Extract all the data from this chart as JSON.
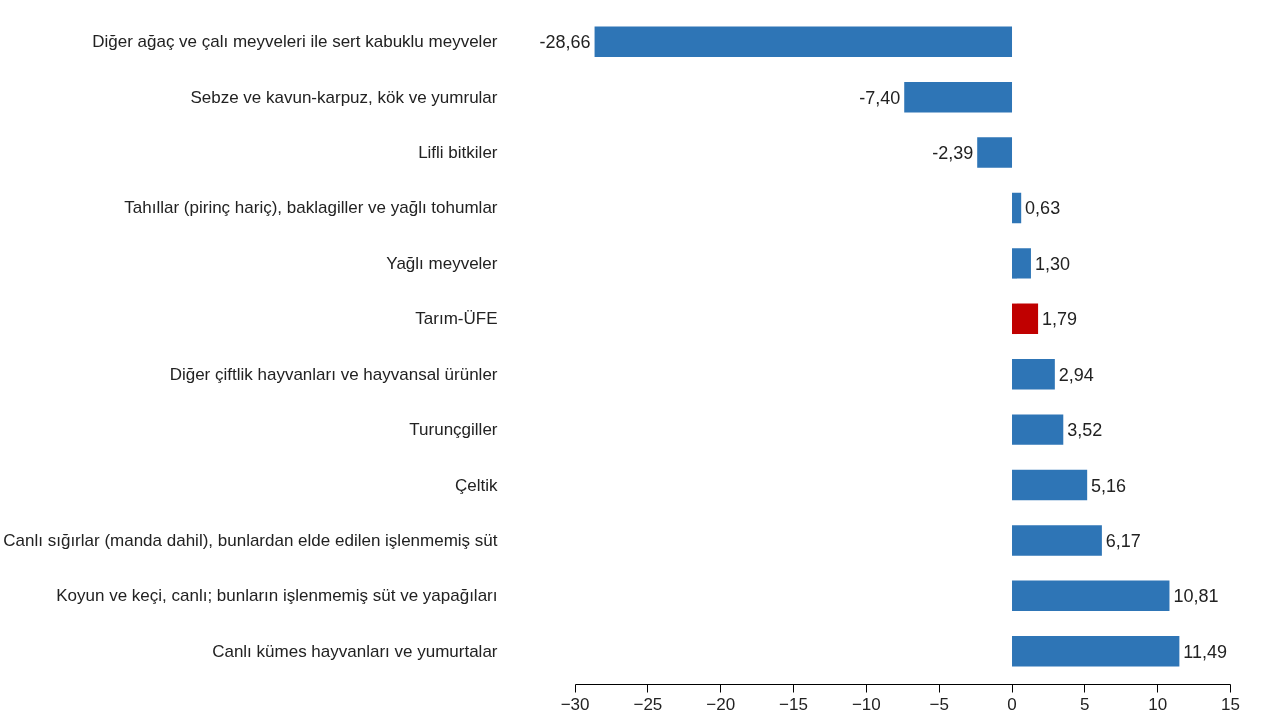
{
  "chart_data": {
    "type": "bar",
    "orientation": "horizontal",
    "categories": [
      "Diğer ağaç ve çalı meyveleri ile sert kabuklu meyveler",
      "Sebze ve kavun-karpuz, kök ve yumrular",
      "Lifli bitkiler",
      "Tahıllar (pirinç hariç), baklagiller ve yağlı tohumlar",
      "Yağlı meyveler",
      "Tarım-ÜFE",
      "Diğer çiftlik hayvanları ve hayvansal ürünler",
      "Turunçgiller",
      "Çeltik",
      "Canlı sığırlar (manda dahil), bunlardan elde edilen işlenmemiş süt",
      "Koyun ve keçi, canlı; bunların işlenmemiş süt ve yapağıları",
      "Canlı kümes hayvanları ve yumurtalar"
    ],
    "values": [
      -28.66,
      -7.4,
      -2.39,
      0.63,
      1.3,
      1.79,
      2.94,
      3.52,
      5.16,
      6.17,
      10.81,
      11.49
    ],
    "value_labels": [
      "-28,66",
      "-7,40",
      "-2,39",
      "0,63",
      "1,30",
      "1,79",
      "2,94",
      "3,52",
      "5,16",
      "6,17",
      "10,81",
      "11,49"
    ],
    "colors": [
      "#2e75b6",
      "#2e75b6",
      "#2e75b6",
      "#2e75b6",
      "#2e75b6",
      "#c00000",
      "#2e75b6",
      "#2e75b6",
      "#2e75b6",
      "#2e75b6",
      "#2e75b6",
      "#2e75b6"
    ],
    "xlim": [
      -30,
      15
    ],
    "xticks": [
      -30,
      -25,
      -20,
      -15,
      -10,
      -5,
      0,
      5,
      10,
      15
    ]
  }
}
